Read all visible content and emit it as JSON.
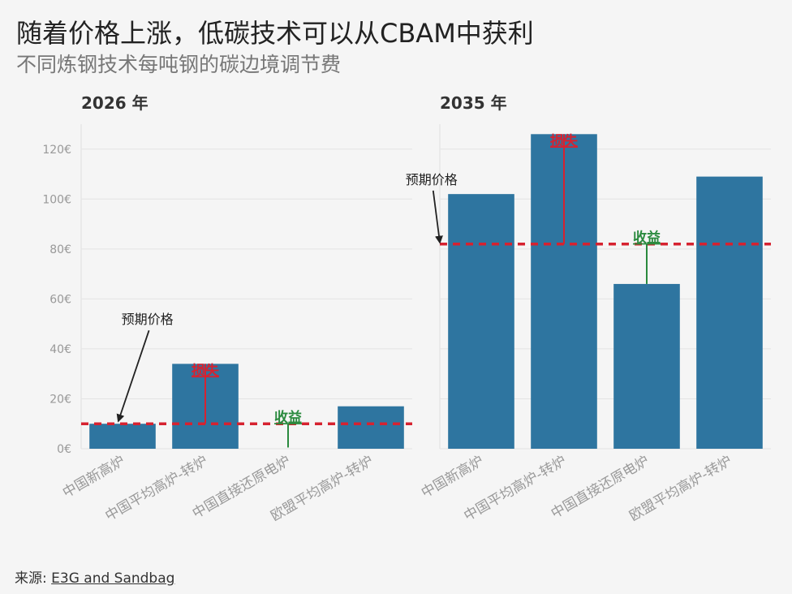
{
  "title": "随着价格上涨，低碳技术可以从CBAM中获利",
  "subtitle": "不同炼钢技术每吨钢的碳边境调节费",
  "source": {
    "label": "来源:",
    "link_text": "E3G and Sandbag"
  },
  "colors": {
    "bar": "#2e75a0",
    "price_line": "#d62230",
    "loss": "#d62230",
    "gain": "#2a8a3e",
    "grid": "#e4e4e4",
    "tick": "#999999"
  },
  "chart_data": [
    {
      "type": "bar",
      "panel_title": "2026 年",
      "categories": [
        "中国新高炉",
        "中国平均高炉-转炉",
        "中国直接还原电炉",
        "欧盟平均高炉-转炉"
      ],
      "values": [
        10,
        34,
        0,
        17
      ],
      "expected_price": 10,
      "ylim": [
        0,
        130
      ],
      "yticks": [
        0,
        20,
        40,
        60,
        80,
        100,
        120
      ],
      "ytick_labels": [
        "0€",
        "20€",
        "40€",
        "60€",
        "80€",
        "100€",
        "120€"
      ],
      "show_y_labels": true,
      "grid": true,
      "annotations": [
        {
          "text": "预期价格",
          "kind": "price_label",
          "label_x": 0.3,
          "label_y": 50,
          "arrow_to_x": -0.05,
          "arrow_to_y": 10.5
        },
        {
          "text": "损失",
          "kind": "loss",
          "category_index": 1,
          "from": 34,
          "to": 10
        },
        {
          "text": "收益",
          "kind": "gain",
          "category_index": 2,
          "from": 10,
          "to": 0.5
        }
      ]
    },
    {
      "type": "bar",
      "panel_title": "2035 年",
      "categories": [
        "中国新高炉",
        "中国平均高炉-转炉",
        "中国直接还原电炉",
        "欧盟平均高炉-转炉"
      ],
      "values": [
        102,
        126,
        66,
        109
      ],
      "expected_price": 82,
      "ylim": [
        0,
        130
      ],
      "yticks": [
        0,
        20,
        40,
        60,
        80,
        100,
        120
      ],
      "ytick_labels": [
        "0€",
        "20€",
        "40€",
        "60€",
        "80€",
        "100€",
        "120€"
      ],
      "show_y_labels": false,
      "grid": true,
      "annotations": [
        {
          "text": "预期价格",
          "kind": "price_label",
          "label_x": -0.6,
          "label_y": 106,
          "arrow_to_x": -0.5,
          "arrow_to_y": 82
        },
        {
          "text": "损失",
          "kind": "loss",
          "category_index": 1,
          "from": 126,
          "to": 82
        },
        {
          "text": "收益",
          "kind": "gain",
          "category_index": 2,
          "from": 66,
          "to": 82
        }
      ]
    }
  ]
}
